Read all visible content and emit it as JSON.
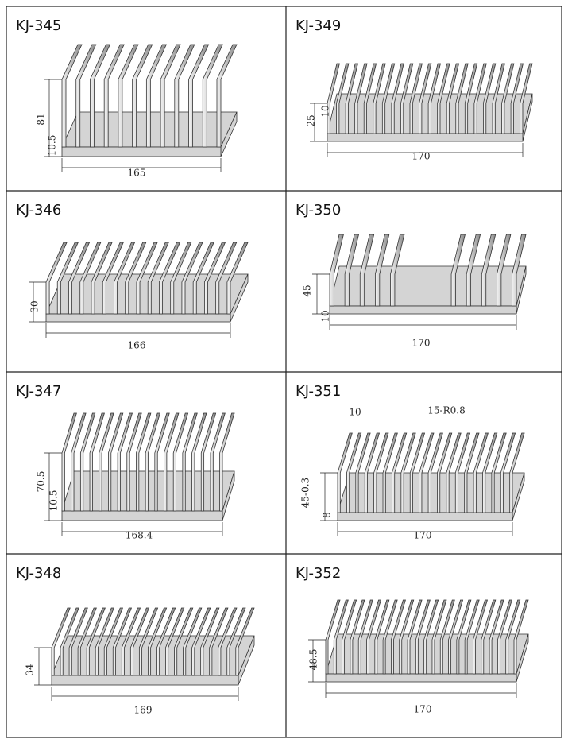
{
  "items": [
    {
      "model": "KJ-345",
      "dimensions": [
        "81",
        "10.5",
        "165"
      ]
    },
    {
      "model": "KJ-349",
      "dimensions": [
        "25",
        "10",
        "170"
      ]
    },
    {
      "model": "KJ-346",
      "dimensions": [
        "30",
        "166"
      ]
    },
    {
      "model": "KJ-350",
      "dimensions": [
        "45",
        "10",
        "170"
      ]
    },
    {
      "model": "KJ-347",
      "dimensions": [
        "70.5",
        "10.5",
        "168.4"
      ]
    },
    {
      "model": "KJ-351",
      "dimensions": [
        "10",
        "15-R0.8",
        "45-0.3",
        "8",
        "170"
      ]
    },
    {
      "model": "KJ-348",
      "dimensions": [
        "34",
        "169"
      ]
    },
    {
      "model": "KJ-352",
      "dimensions": [
        "48.5",
        "170"
      ]
    }
  ]
}
